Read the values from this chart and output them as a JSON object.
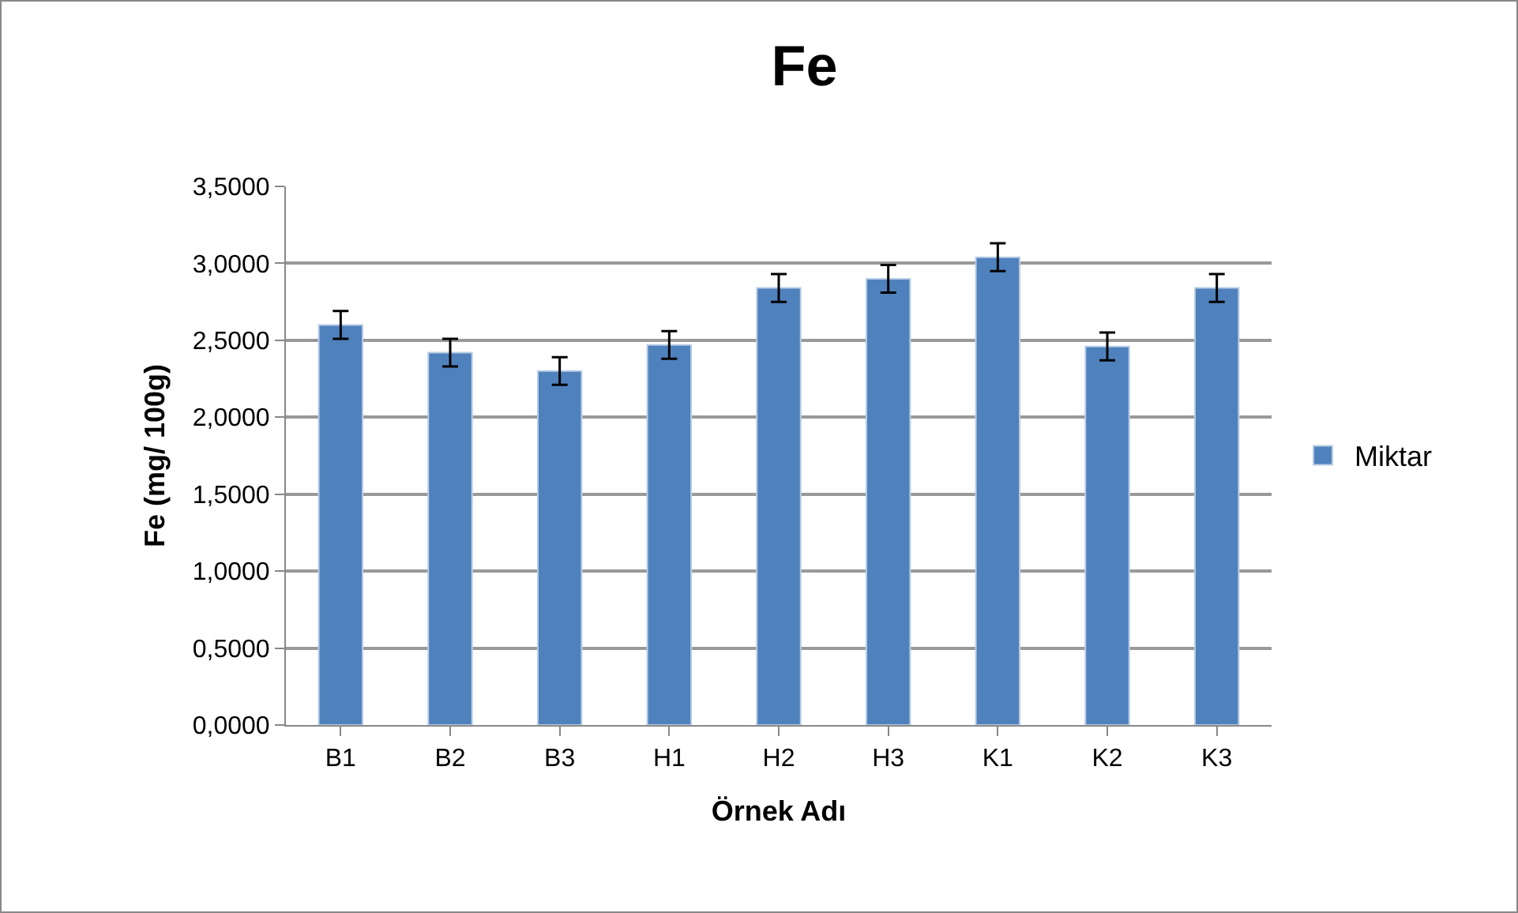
{
  "chart_data": {
    "type": "bar",
    "title": "Fe",
    "xlabel": "Örnek Adı",
    "ylabel": "Fe (mg/ 100g)",
    "categories": [
      "B1",
      "B2",
      "B3",
      "H1",
      "H2",
      "H3",
      "K1",
      "K2",
      "K3"
    ],
    "series": [
      {
        "name": "Miktar",
        "color": "#4f81bd",
        "values": [
          2.6,
          2.42,
          2.3,
          2.47,
          2.84,
          2.9,
          3.04,
          2.46,
          2.84
        ],
        "errors": [
          0.09,
          0.09,
          0.09,
          0.09,
          0.09,
          0.09,
          0.09,
          0.09,
          0.09
        ]
      }
    ],
    "ylim": [
      0,
      3.5
    ],
    "yticks": [
      {
        "value": 0,
        "label": "0,0000"
      },
      {
        "value": 0.5,
        "label": "0,5000"
      },
      {
        "value": 1,
        "label": "1,0000"
      },
      {
        "value": 1.5,
        "label": "1,5000"
      },
      {
        "value": 2,
        "label": "2,0000"
      },
      {
        "value": 2.5,
        "label": "2,5000"
      },
      {
        "value": 3,
        "label": "3,0000"
      },
      {
        "value": 3.5,
        "label": "3,5000"
      }
    ],
    "grid": "y",
    "legend": "right"
  }
}
